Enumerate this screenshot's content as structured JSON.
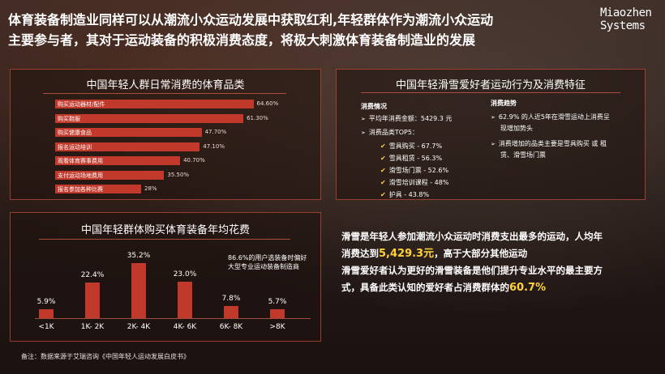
{
  "headline": {
    "line1": "体育装备制造业同样可以从潮流小众运动发展中获取红利,年轻群体作为潮流小众运动",
    "line2": "主要参与者，其对于运动装备的积极消费态度，将极大刺激体育装备制造业的发展"
  },
  "logo": {
    "line1": "Miaozhen",
    "line2": "Systems"
  },
  "colors": {
    "accent": "#c0392b",
    "highlight": "#ffd23c",
    "border": "#aa4632"
  },
  "daily_panel": {
    "title": "中国年轻人群日常消费的体育品类"
  },
  "spend_panel": {
    "title": "中国年轻群体购买体育装备年均花费",
    "note": "86.6%的用户选装备时偏好大型专业运动装备制造商",
    "note_line1": "86.6%的用户选装备时偏好",
    "note_line2": "大型专业运动装备制造商"
  },
  "ski_panel": {
    "title": "中国年轻滑雪爱好者运动行为及消费特征",
    "left_head": "消费情况",
    "avg_label": "平均年消费金额：",
    "avg_value": "5429.3 元",
    "top5_label": "消费品类TOP5：",
    "top5": [
      "雪具购买 - 67.7%",
      "雪具租赁 - 56.3%",
      "滑雪场门票 - 52.6%",
      "滑雪培训课程 - 48%",
      "护具 - 43.8%"
    ],
    "right_head": "消费趋势",
    "trend1_line1": "62.9% 的人近5年在滑雪运动上消费呈",
    "trend1_line2": "现增加势头",
    "trend2_line1": "消费增加的品类主要是雪具购买 或 租",
    "trend2_line2": "赁、滑雪场门票"
  },
  "summary": {
    "l1": "滑雪是年轻人参加潮流小众运动时消费支出最多的运动，人均年",
    "l2a": "消费达到",
    "l2b": "5,429.3元",
    "l2c": "，高于大部分其他运动",
    "l3": "滑雪爱好者认为更好的滑雪装备是他们提升专业水平的最主要方",
    "l4a": "式，具备此类认知的爱好者占消费群体的",
    "l4b": "60.7%"
  },
  "note": "备注：数据来源于艾瑞咨询《中国年轻人运动发展白皮书》",
  "chart_data": [
    {
      "type": "bar",
      "orientation": "horizontal",
      "title": "中国年轻人群日常消费的体育品类",
      "categories": [
        "购买运动器材/配件",
        "购买鞋服",
        "购买健康食品",
        "报名运动培训",
        "观看体育赛事费用",
        "支付运动场地费用",
        "报名参加各种比赛"
      ],
      "values": [
        64.6,
        61.3,
        47.7,
        47.1,
        40.7,
        35.5,
        28
      ],
      "value_labels": [
        "64.60%",
        "61.30%",
        "47.70%",
        "47.10%",
        "40.70%",
        "35.50%",
        "28%"
      ],
      "unit": "%"
    },
    {
      "type": "bar",
      "orientation": "vertical",
      "title": "中国年轻群体购买体育装备年均花费",
      "categories": [
        "<1K",
        "1K- 2K",
        "2K- 4K",
        "4K- 6K",
        "6K- 8K",
        ">8K"
      ],
      "values": [
        5.9,
        22.4,
        35.2,
        23.0,
        7.8,
        5.7
      ],
      "value_labels": [
        "5.9%",
        "22.4%",
        "35.2%",
        "23.0%",
        "7.8%",
        "5.7%"
      ],
      "unit": "%"
    }
  ]
}
